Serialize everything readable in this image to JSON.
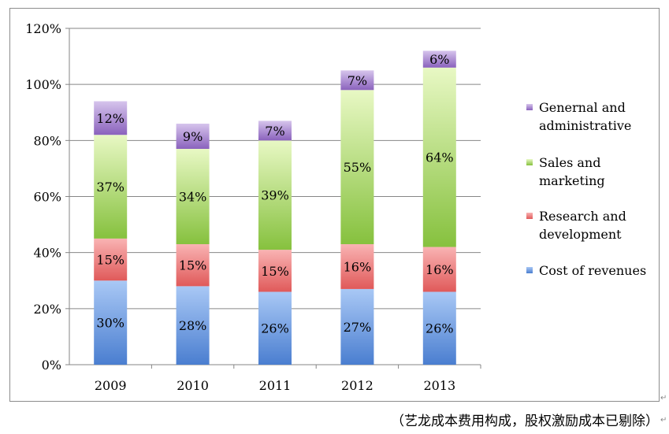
{
  "chart_data": {
    "type": "bar",
    "stacked": true,
    "categories": [
      "2009",
      "2010",
      "2011",
      "2012",
      "2013"
    ],
    "series": [
      {
        "name": "Cost of revenues",
        "values": [
          30,
          28,
          26,
          27,
          26
        ],
        "labels": [
          "30%",
          "28%",
          "26%",
          "27%",
          "26%"
        ],
        "color_light": "#a9c8f5",
        "color_dark": "#4a7ed0"
      },
      {
        "name": "Research and development",
        "values": [
          15,
          15,
          15,
          16,
          16
        ],
        "labels": [
          "15%",
          "15%",
          "15%",
          "16%",
          "16%"
        ],
        "color_light": "#f9b3b3",
        "color_dark": "#e05a5a"
      },
      {
        "name": "Sales and marketing",
        "values": [
          37,
          34,
          39,
          55,
          64
        ],
        "labels": [
          "37%",
          "34%",
          "39%",
          "55%",
          "64%"
        ],
        "color_light": "#e8f8c4",
        "color_dark": "#86c13e"
      },
      {
        "name": "Genernal and administrative",
        "values": [
          12,
          9,
          7,
          7,
          6
        ],
        "labels": [
          "12%",
          "9%",
          "7%",
          "7%",
          "6%"
        ],
        "color_light": "#d6c4ec",
        "color_dark": "#8a62bd"
      }
    ],
    "legend_order": [
      3,
      2,
      1,
      0
    ],
    "legend_lines": {
      "0": [
        "Cost of revenues"
      ],
      "1": [
        "Research and",
        "development"
      ],
      "2": [
        "Sales and",
        "marketing"
      ],
      "3": [
        "Genernal and",
        "administrative"
      ]
    },
    "y_ticks": [
      "0%",
      "20%",
      "40%",
      "60%",
      "80%",
      "100%",
      "120%"
    ],
    "ylim": [
      0,
      120
    ],
    "y_step": 20,
    "grid": true,
    "legend_position": "right",
    "title": "",
    "xlabel": "",
    "ylabel": ""
  },
  "caption": "（艺龙成本费用构成，股权激励成本已剔除）",
  "marks": {
    "corner": "↵",
    "caption_end": "↵"
  }
}
